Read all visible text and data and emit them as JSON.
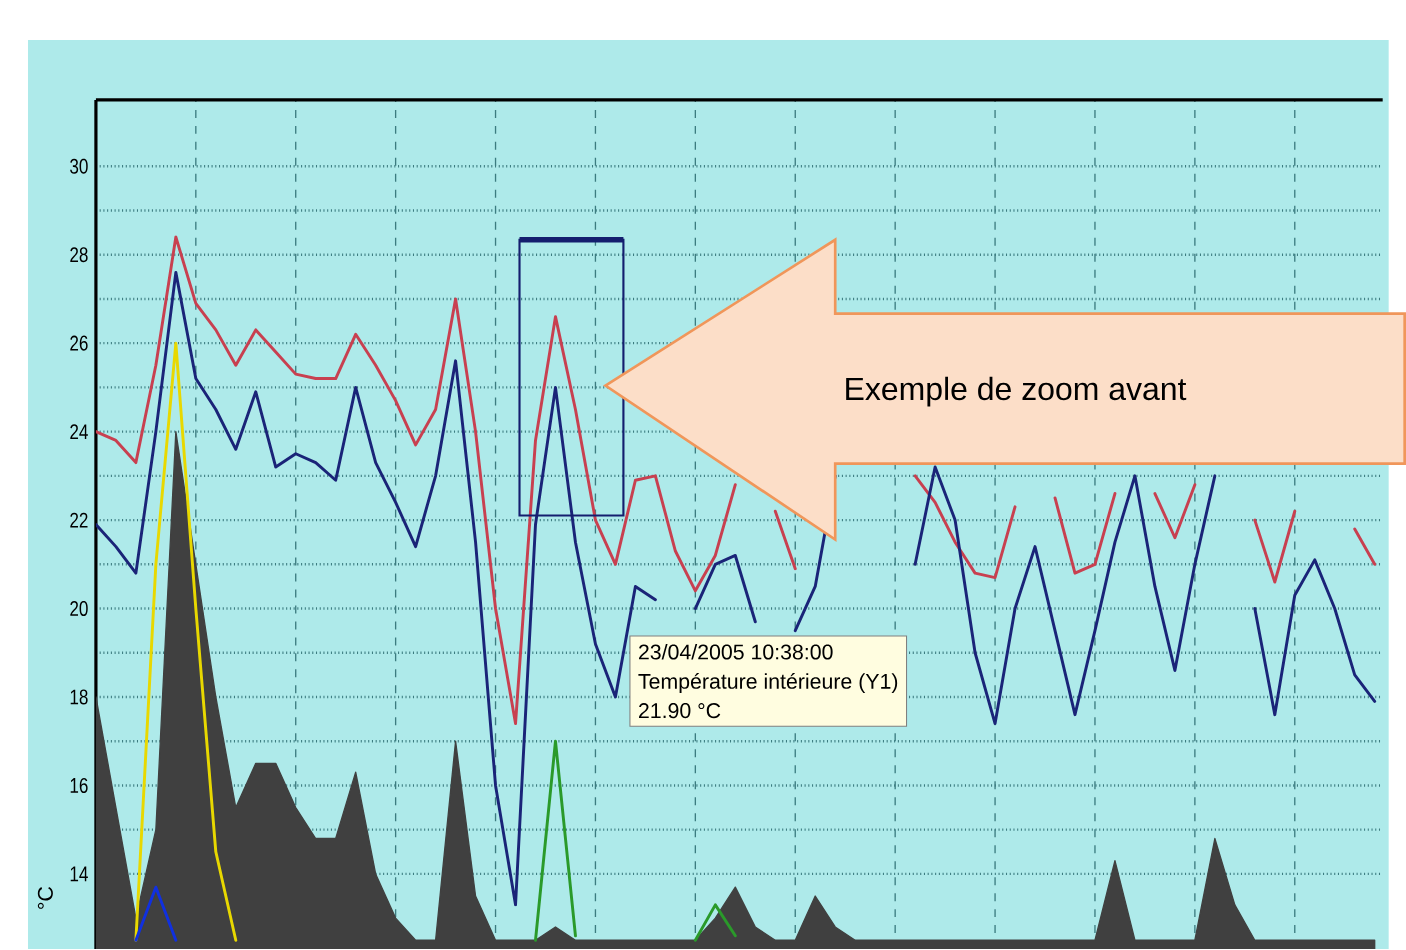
{
  "chart_data": {
    "type": "line",
    "ylabel": "°C",
    "categories": [
      null,
      null,
      null,
      null,
      null,
      null,
      null,
      null,
      null,
      null,
      null,
      null,
      null,
      null,
      null,
      null,
      null,
      null,
      null,
      null,
      null,
      null,
      null,
      null,
      null,
      null,
      null,
      null,
      null,
      null,
      null,
      null,
      null,
      null,
      null,
      null,
      null,
      null,
      null,
      null,
      null,
      null,
      null,
      null,
      null,
      null,
      null,
      null,
      null,
      null,
      null,
      null,
      null,
      null,
      null,
      null,
      null,
      null,
      null,
      null,
      null,
      null,
      null,
      null,
      null
    ],
    "series": [
      {
        "type": "area",
        "color": "#404040",
        "values": [
          18,
          15.5,
          13,
          15,
          24,
          21,
          18,
          15.5,
          16.5,
          16.5,
          15.5,
          14.8,
          14.8,
          16.3,
          14.0,
          13.0,
          12.5,
          12.5,
          17.0,
          13.5,
          12.5,
          12.5,
          12.5,
          12.8,
          12.5,
          12.5,
          12.5,
          12.5,
          12.5,
          12.5,
          12.5,
          13.0,
          13.7,
          12.8,
          12.5,
          12.5,
          13.5,
          12.8,
          12.5,
          12.5,
          12.5,
          12.5,
          12.5,
          12.5,
          12.5,
          12.5,
          12.5,
          12.5,
          12.5,
          12.5,
          12.5,
          14.3,
          12.5,
          12.5,
          12.5,
          12.5,
          14.8,
          13.3,
          12.5,
          12.5,
          12.5,
          12.5,
          12.5,
          12.5,
          12.5
        ]
      },
      {
        "type": "line",
        "color": "#e8d800",
        "values": [
          null,
          null,
          12.5,
          21,
          26,
          20,
          14.5,
          12.5,
          null,
          null,
          null,
          null,
          null,
          null,
          null,
          null,
          null,
          null,
          null,
          null,
          null,
          null,
          null,
          null,
          null,
          null,
          null,
          null,
          null,
          null,
          null,
          null,
          null,
          null,
          null,
          null,
          null,
          null,
          null,
          null,
          null,
          null,
          null,
          null,
          null,
          null,
          null,
          null,
          null,
          null,
          null,
          null,
          null,
          null,
          null,
          null,
          null,
          null,
          null,
          null,
          null,
          null,
          null,
          null,
          null
        ]
      },
      {
        "type": "line",
        "color": "#2a9a2a",
        "values": [
          null,
          null,
          null,
          null,
          null,
          null,
          null,
          null,
          null,
          null,
          null,
          null,
          null,
          null,
          null,
          null,
          null,
          null,
          null,
          null,
          null,
          null,
          12.5,
          17.0,
          12.6,
          null,
          null,
          null,
          null,
          null,
          12.5,
          13.3,
          12.6,
          null,
          null,
          null,
          null,
          null,
          null,
          null,
          null,
          null,
          null,
          null,
          null,
          null,
          null,
          null,
          null,
          null,
          null,
          null,
          null,
          null,
          null,
          null,
          null,
          null,
          null,
          null,
          null,
          null,
          null,
          null,
          null
        ]
      },
      {
        "type": "line",
        "color": "#1030e0",
        "values": [
          null,
          null,
          12.5,
          13.7,
          12.5,
          null,
          null,
          null,
          null,
          null,
          null,
          null,
          null,
          null,
          null,
          null,
          null,
          null,
          null,
          null,
          null,
          null,
          null,
          null,
          null,
          null,
          null,
          null,
          null,
          null,
          null,
          null,
          null,
          null,
          null,
          null,
          null,
          null,
          null,
          null,
          null,
          null,
          null,
          null,
          null,
          null,
          null,
          null,
          null,
          null,
          null,
          null,
          null,
          null,
          null,
          null,
          null,
          null,
          null,
          null,
          null,
          null,
          null,
          null,
          null
        ]
      },
      {
        "color": "#c84050",
        "values": [
          24.0,
          23.8,
          23.3,
          25.5,
          28.4,
          26.9,
          26.3,
          25.5,
          26.3,
          25.8,
          25.3,
          25.2,
          25.2,
          26.2,
          25.5,
          24.7,
          23.7,
          24.5,
          27.0,
          24.0,
          20.0,
          17.4,
          23.8,
          26.6,
          24.5,
          22.0,
          21.0,
          22.9,
          23.0,
          21.3,
          20.4,
          21.2,
          22.8,
          null,
          22.2,
          20.9,
          null,
          null,
          null,
          null,
          null,
          23.0,
          22.4,
          21.5,
          20.8,
          20.7,
          22.3,
          null,
          22.5,
          20.8,
          21.0,
          22.6,
          null,
          22.6,
          21.6,
          22.8,
          null,
          null,
          22.0,
          20.6,
          22.2,
          null,
          null,
          21.8,
          21.0
        ]
      },
      {
        "color": "#1a2478",
        "values": [
          21.9,
          21.4,
          20.8,
          24.0,
          27.6,
          25.2,
          24.5,
          23.6,
          24.9,
          23.2,
          23.5,
          23.3,
          22.9,
          25.0,
          23.3,
          22.4,
          21.4,
          23.0,
          25.6,
          21.5,
          16.0,
          13.3,
          21.9,
          25.0,
          21.5,
          19.2,
          18.0,
          20.5,
          20.2,
          null,
          20.0,
          21.0,
          21.2,
          19.7,
          null,
          19.5,
          20.5,
          23.0,
          null,
          null,
          null,
          21.0,
          23.2,
          22.0,
          19.0,
          17.4,
          20.0,
          21.4,
          19.5,
          17.6,
          19.5,
          21.5,
          23.0,
          20.5,
          18.6,
          21.0,
          23.0,
          null,
          20.0,
          17.6,
          20.3,
          21.1,
          20.0,
          18.5,
          17.9
        ]
      }
    ],
    "ylim": [
      12.3,
      31.5
    ],
    "yticks": [
      14,
      16,
      18,
      20,
      22,
      24,
      26,
      28,
      30
    ],
    "grid": true,
    "annotations": [
      "Exemple de zoom avant",
      "23/04/2005 10:38:00",
      "Température intérieure (Y1)",
      "21.90 °C"
    ]
  }
}
